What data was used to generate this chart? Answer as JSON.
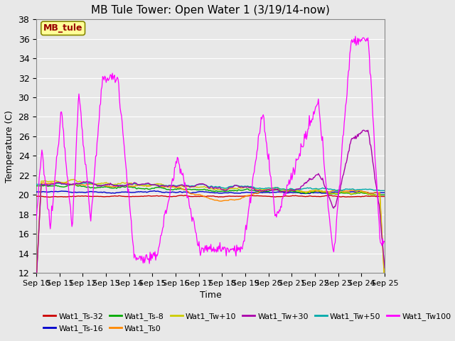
{
  "title": "MB Tule Tower: Open Water 1 (3/19/14-now)",
  "xlabel": "Time",
  "ylabel": "Temperature (C)",
  "ylim": [
    12,
    38
  ],
  "yticks": [
    12,
    14,
    16,
    18,
    20,
    22,
    24,
    26,
    28,
    30,
    32,
    34,
    36,
    38
  ],
  "x_labels": [
    "Sep 10",
    "Sep 11",
    "Sep 12",
    "Sep 13",
    "Sep 14",
    "Sep 15",
    "Sep 16",
    "Sep 17",
    "Sep 18",
    "Sep 19",
    "Sep 20",
    "Sep 21",
    "Sep 22",
    "Sep 23",
    "Sep 24",
    "Sep 25"
  ],
  "legend_label": "MB_tule",
  "legend_box_facecolor": "#FFFF99",
  "legend_box_edgecolor": "#888800",
  "legend_text_color": "#990000",
  "series": [
    {
      "label": "Wat1_Ts-32",
      "color": "#CC0000"
    },
    {
      "label": "Wat1_Ts-16",
      "color": "#0000CC"
    },
    {
      "label": "Wat1_Ts-8",
      "color": "#00AA00"
    },
    {
      "label": "Wat1_Ts0",
      "color": "#FF8800"
    },
    {
      "label": "Wat1_Tw+10",
      "color": "#CCCC00"
    },
    {
      "label": "Wat1_Tw+30",
      "color": "#AA00AA"
    },
    {
      "label": "Wat1_Tw+50",
      "color": "#00AAAA"
    },
    {
      "label": "Wat1_Tw100",
      "color": "#FF00FF"
    }
  ],
  "background_color": "#E8E8E8",
  "grid_color": "#FFFFFF",
  "figsize": [
    6.4,
    4.8
  ],
  "dpi": 100
}
